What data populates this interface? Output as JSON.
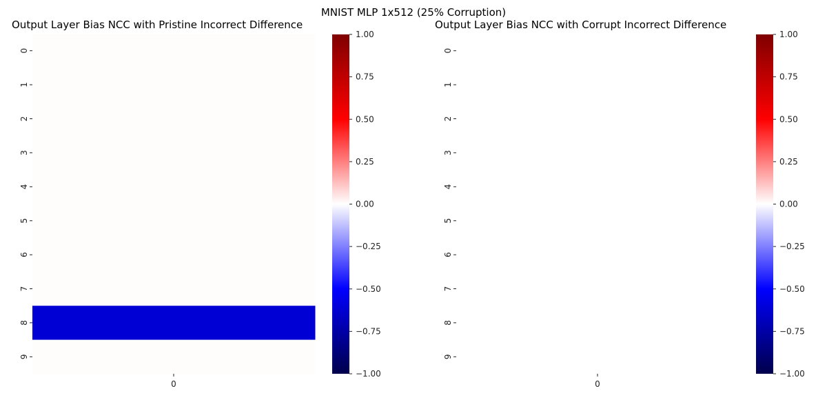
{
  "figure": {
    "suptitle": "MNIST MLP 1x512 (25% Corruption)"
  },
  "colormap": {
    "name": "seismic",
    "stops": [
      "#00004c",
      "#0000ff",
      "#ffffff",
      "#ff0000",
      "#7f0000"
    ]
  },
  "chart_data": [
    {
      "type": "heatmap",
      "title": "Output Layer Bias NCC with Pristine Incorrect Difference",
      "row_labels": [
        "0",
        "1",
        "2",
        "3",
        "4",
        "5",
        "6",
        "7",
        "8",
        "9"
      ],
      "col_labels": [
        "0"
      ],
      "values": [
        [
          0.005
        ],
        [
          0.005
        ],
        [
          0.005
        ],
        [
          0.005
        ],
        [
          0.005
        ],
        [
          0.005
        ],
        [
          0.005
        ],
        [
          0.005
        ],
        [
          -0.62
        ],
        [
          0.005
        ]
      ],
      "vmin": -1.0,
      "vmax": 1.0,
      "colorbar_ticks": [
        "1.00",
        "0.75",
        "0.50",
        "0.25",
        "0.00",
        "−0.25",
        "−0.50",
        "−0.75",
        "−1.00"
      ],
      "colorbar_tick_values": [
        1.0,
        0.75,
        0.5,
        0.25,
        0.0,
        -0.25,
        -0.5,
        -0.75,
        -1.0
      ]
    },
    {
      "type": "heatmap",
      "title": "Output Layer Bias NCC with Corrupt Incorrect Difference",
      "row_labels": [
        "0",
        "1",
        "2",
        "3",
        "4",
        "5",
        "6",
        "7",
        "8",
        "9"
      ],
      "col_labels": [
        "0"
      ],
      "values": [
        [
          0.0
        ],
        [
          0.0
        ],
        [
          0.0
        ],
        [
          0.0
        ],
        [
          0.0
        ],
        [
          0.0
        ],
        [
          0.0
        ],
        [
          0.0
        ],
        [
          0.0
        ],
        [
          0.0
        ]
      ],
      "vmin": -1.0,
      "vmax": 1.0,
      "colorbar_ticks": [
        "1.00",
        "0.75",
        "0.50",
        "0.25",
        "0.00",
        "−0.25",
        "−0.50",
        "−0.75",
        "−1.00"
      ],
      "colorbar_tick_values": [
        1.0,
        0.75,
        0.5,
        0.25,
        0.0,
        -0.25,
        -0.5,
        -0.75,
        -1.0
      ]
    }
  ]
}
